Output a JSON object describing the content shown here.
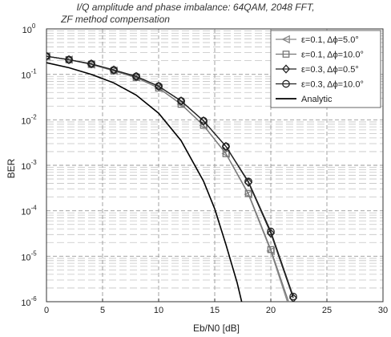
{
  "chart_data": {
    "type": "line",
    "title": [
      "I/Q amplitude and phase imbalance: 64QAM, 2048 FFT,",
      "ZF method compensation"
    ],
    "xlabel": "Eb/N0 [dB]",
    "ylabel": "BER",
    "xlim": [
      0,
      30
    ],
    "ylim": [
      1e-06,
      1
    ],
    "yscale": "log",
    "grid": true,
    "legend_position": "top-right",
    "x_ticks": [
      "0",
      "5",
      "10",
      "15",
      "20",
      "25",
      "30"
    ],
    "y_ticks": [
      {
        "base": "10",
        "exp": "0"
      },
      {
        "base": "10",
        "exp": "-1"
      },
      {
        "base": "10",
        "exp": "-2"
      },
      {
        "base": "10",
        "exp": "-3"
      },
      {
        "base": "10",
        "exp": "-4"
      },
      {
        "base": "10",
        "exp": "-5"
      },
      {
        "base": "10",
        "exp": "-6"
      }
    ],
    "series": [
      {
        "name": "ε=0.1, Δϕ=5.0°",
        "marker": "triangle-left",
        "color": "#888888",
        "x": [
          0,
          2,
          4,
          6,
          8,
          10,
          12,
          14,
          16,
          18,
          20,
          22
        ],
        "y": [
          0.25,
          0.21,
          0.165,
          0.12,
          0.085,
          0.05,
          0.022,
          0.0075,
          0.0018,
          0.00023,
          1.3e-05,
          4e-07
        ]
      },
      {
        "name": "ε=0.1, Δϕ=10.0°",
        "marker": "square",
        "color": "#777777",
        "x": [
          0,
          2,
          4,
          6,
          8,
          10,
          12,
          14,
          16,
          18,
          20,
          22
        ],
        "y": [
          0.25,
          0.21,
          0.165,
          0.12,
          0.085,
          0.05,
          0.022,
          0.0076,
          0.0018,
          0.00024,
          1.4e-05,
          5e-07
        ]
      },
      {
        "name": "ε=0.3, Δϕ=0.5°",
        "marker": "diamond",
        "color": "#222222",
        "x": [
          0,
          2,
          4,
          6,
          8,
          10,
          12,
          14,
          16,
          18,
          20,
          22
        ],
        "y": [
          0.25,
          0.21,
          0.17,
          0.125,
          0.09,
          0.055,
          0.026,
          0.0095,
          0.0026,
          0.00042,
          3.2e-05,
          1.2e-06
        ]
      },
      {
        "name": "ε=0.3, Δϕ=10.0°",
        "marker": "circle",
        "color": "#222222",
        "x": [
          0,
          2,
          4,
          6,
          8,
          10,
          12,
          14,
          16,
          18,
          20,
          22
        ],
        "y": [
          0.25,
          0.21,
          0.17,
          0.125,
          0.09,
          0.055,
          0.026,
          0.0095,
          0.0026,
          0.00044,
          3.5e-05,
          1.3e-06
        ]
      },
      {
        "name": "Analytic",
        "marker": "none",
        "color": "#000000",
        "x": [
          0,
          2,
          4,
          6,
          8,
          10,
          12,
          14,
          15,
          16,
          17,
          18,
          18.7
        ],
        "y": [
          0.18,
          0.14,
          0.1,
          0.065,
          0.035,
          0.014,
          0.0035,
          0.00045,
          0.00011,
          1.8e-05,
          2.6e-06,
          2.4e-07,
          1e-06
        ]
      }
    ]
  }
}
